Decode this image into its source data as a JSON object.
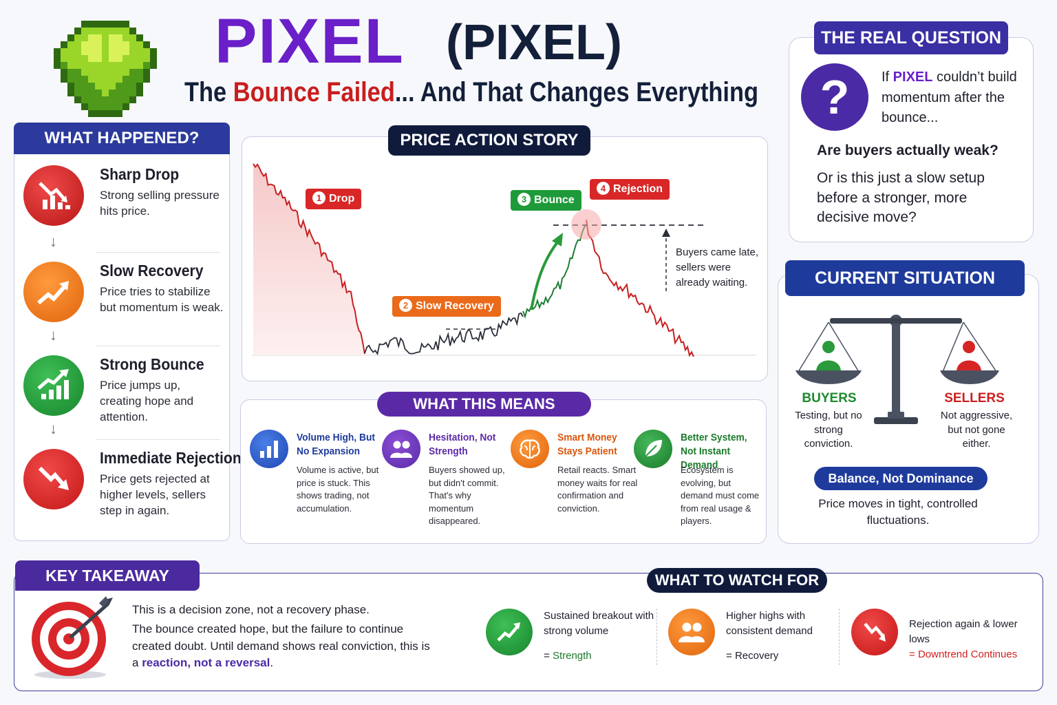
{
  "header": {
    "title": "PIXEL",
    "ticker": "(PIXEL)",
    "subtitle_pre": "The ",
    "subtitle_highlight": "Bounce Failed",
    "subtitle_post": "... And That Changes Everything"
  },
  "what_happened": {
    "title": "WHAT HAPPENED?",
    "items": [
      {
        "title": "Sharp Drop",
        "desc": "Strong selling pressure hits price.",
        "color": "#d92626",
        "icon": "falling-bars-icon"
      },
      {
        "title": "Slow Recovery",
        "desc": "Price tries to stabilize but momentum is weak.",
        "color": "#f07a1a",
        "icon": "rising-arrow-icon"
      },
      {
        "title": "Strong Bounce",
        "desc": "Price jumps up, creating hope and attention.",
        "color": "#1f9a3a",
        "icon": "rising-bars-icon"
      },
      {
        "title": "Immediate Rejection",
        "desc": "Price gets rejected at higher levels, sellers step in again.",
        "color": "#e02828",
        "icon": "falling-arrow-icon"
      }
    ]
  },
  "price_action": {
    "title": "PRICE ACTION STORY",
    "labels": [
      {
        "num": "1",
        "text": "Drop",
        "color": "#d92626"
      },
      {
        "num": "2",
        "text": "Slow Recovery",
        "color": "#ea6a1a"
      },
      {
        "num": "3",
        "text": "Bounce",
        "color": "#1f9a3a"
      },
      {
        "num": "4",
        "text": "Rejection",
        "color": "#d92626"
      }
    ],
    "note": "Buyers came late, sellers were already waiting."
  },
  "what_this_means": {
    "title": "WHAT THIS MEANS",
    "items": [
      {
        "title": "Volume High, But No Expansion",
        "desc": "Volume is active, but price is stuck. This shows trading, not accumulation.",
        "color": "#2b57c9",
        "title_color": "#1e3b9c",
        "icon": "bar-chart-icon"
      },
      {
        "title": "Hesitation, Not Strength",
        "desc": "Buyers showed up, but didn't commit. That's why momentum disappeared.",
        "color": "#6a2fb8",
        "title_color": "#5a2aa6",
        "icon": "users-icon"
      },
      {
        "title": "Smart Money Stays Patient",
        "desc": "Retail reacts. Smart money waits for real confirmation and conviction.",
        "color": "#f07a1a",
        "title_color": "#d9560e",
        "icon": "brain-icon"
      },
      {
        "title": "Better System, Not Instant Demand",
        "desc": "Ecosystem is evolving, but demand must come from real usage & players.",
        "color": "#2a9a3a",
        "title_color": "#1b7a2a",
        "icon": "leaf-icon"
      }
    ]
  },
  "real_question": {
    "title": "THE REAL QUESTION",
    "mark": "?",
    "lead_pre": "If ",
    "lead_highlight": "PIXEL",
    "lead_post": " couldn’t build momentum after the bounce...",
    "question": "Are buyers actually weak?",
    "alternative": "Or is this just a slow setup before a stronger, more decisive move?"
  },
  "current_situation": {
    "title": "CURRENT SITUATION",
    "buyers_label": "BUYERS",
    "buyers_desc": "Testing, but no strong conviction.",
    "sellers_label": "SELLERS",
    "sellers_desc": "Not aggressive, but not gone either.",
    "balance": "Balance, Not Dominance",
    "desc": "Price moves in tight, controlled fluctuations."
  },
  "key_takeaway": {
    "title": "KEY TAKEAWAY",
    "headline": "This is a decision zone, not a recovery phase.",
    "body": "The bounce created hope, but the failure to continue created doubt. Until demand shows real conviction, this is a ",
    "highlight": "reaction, not a reversal",
    "end": "."
  },
  "watch_for": {
    "title": "WHAT TO WATCH FOR",
    "items": [
      {
        "text": "Sustained breakout with strong volume",
        "result_prefix": "= ",
        "result": "Strength",
        "color": "#1f9a3a",
        "result_color": "#1b7a2a",
        "icon": "rising-arrow-icon"
      },
      {
        "text": "Higher highs with consistent demand",
        "result_prefix": "= ",
        "result": "Recovery",
        "color": "#f07a1a",
        "result_color": "#1d1f2b",
        "icon": "users-icon"
      },
      {
        "text": "Rejection again & lower lows",
        "result_prefix": "= ",
        "result": "Downtrend Continues",
        "color": "#e02828",
        "result_color": "#d01e1e",
        "icon": "falling-arrow-icon"
      }
    ]
  }
}
